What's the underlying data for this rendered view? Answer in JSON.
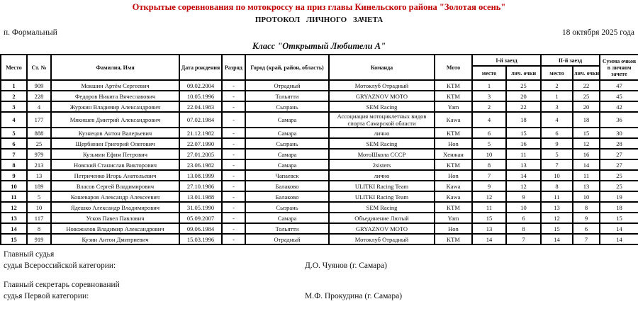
{
  "header": {
    "title": "Открытые соревнования по мотокроссу на приз главы Кинельского района \"Золотая осень\"",
    "subtitle": "ПРОТОКОЛ ЛИЧНОГО ЗАЧЕТА",
    "location": "п. Формальный",
    "date": "18 октября 2025 года",
    "class_title": "Класс \"Открытый Любители А\""
  },
  "colors": {
    "title_red": "#c00000",
    "border": "#000000",
    "text": "#111111"
  },
  "table": {
    "columns": {
      "place": "Место",
      "number": "Ст. №",
      "name": "Фамилия, Имя",
      "birth": "Дата рождения",
      "rank": "Разряд",
      "city": "Город (край, район, область)",
      "team": "Команда",
      "moto": "Мото",
      "race1": "I-й заезд",
      "race2": "II-й заезд",
      "sub_place": "место",
      "sub_points": "лич. очки",
      "total": "Сумма очков в личном зачете"
    },
    "rows": [
      {
        "place": "1",
        "number": "909",
        "name": "Мокшин Артём Сергеевич",
        "birth": "09.02.2004",
        "rank": "-",
        "city": "Отрадный",
        "team": "Мотоклуб Отрадный",
        "moto": "KTM",
        "r1_place": "1",
        "r1_points": "25",
        "r2_place": "2",
        "r2_points": "22",
        "total": "47"
      },
      {
        "place": "2",
        "number": "228",
        "name": "Федоров Никита Вячеславович",
        "birth": "10.05.1996",
        "rank": "-",
        "city": "Тольятти",
        "team": "GRYAZNOV MOTO",
        "moto": "KTM",
        "r1_place": "3",
        "r1_points": "20",
        "r2_place": "1",
        "r2_points": "25",
        "total": "45"
      },
      {
        "place": "3",
        "number": "4",
        "name": "Журжин Владимир Александрович",
        "birth": "22.04.1983",
        "rank": "-",
        "city": "Сызрань",
        "team": "SEM Racing",
        "moto": "Yam",
        "r1_place": "2",
        "r1_points": "22",
        "r2_place": "3",
        "r2_points": "20",
        "total": "42"
      },
      {
        "place": "4",
        "number": "177",
        "name": "Мякишев Дмитрий Александрович",
        "birth": "07.02.1984",
        "rank": "-",
        "city": "Самара",
        "team": "Ассоциация мотоциклетных видов спорта Самарской области",
        "moto": "Kawa",
        "r1_place": "4",
        "r1_points": "18",
        "r2_place": "4",
        "r2_points": "18",
        "total": "36"
      },
      {
        "place": "5",
        "number": "888",
        "name": "Кузнецов Антон Валерьевич",
        "birth": "21.12.1982",
        "rank": "-",
        "city": "Самара",
        "team": "лично",
        "moto": "KTM",
        "r1_place": "6",
        "r1_points": "15",
        "r2_place": "6",
        "r2_points": "15",
        "total": "30"
      },
      {
        "place": "6",
        "number": "25",
        "name": "Щербинин Григорий Олегович",
        "birth": "22.07.1990",
        "rank": "-",
        "city": "Сызрань",
        "team": "SEM Racing",
        "moto": "Hon",
        "r1_place": "5",
        "r1_points": "16",
        "r2_place": "9",
        "r2_points": "12",
        "total": "28"
      },
      {
        "place": "7",
        "number": "979",
        "name": "Кузьмин Ефим Петрович",
        "birth": "27.01.2005",
        "rank": "-",
        "city": "Самара",
        "team": "МотоШкола СССР",
        "moto": "Хенжан",
        "r1_place": "10",
        "r1_points": "11",
        "r2_place": "5",
        "r2_points": "16",
        "total": "27"
      },
      {
        "place": "8",
        "number": "213",
        "name": "Новский Станислав Викторович",
        "birth": "23.06.1982",
        "rank": "-",
        "city": "Самара",
        "team": "2sisters",
        "moto": "KTM",
        "r1_place": "8",
        "r1_points": "13",
        "r2_place": "7",
        "r2_points": "14",
        "total": "27"
      },
      {
        "place": "9",
        "number": "13",
        "name": "Петриченко Игорь Анатольевич",
        "birth": "13.08.1999",
        "rank": "-",
        "city": "Чапаевск",
        "team": "лично",
        "moto": "Hon",
        "r1_place": "7",
        "r1_points": "14",
        "r2_place": "10",
        "r2_points": "11",
        "total": "25"
      },
      {
        "place": "10",
        "number": "189",
        "name": "Власов Сергей Владимирович",
        "birth": "27.10.1986",
        "rank": "-",
        "city": "Балаково",
        "team": "ULITKI Racing Team",
        "moto": "Kawa",
        "r1_place": "9",
        "r1_points": "12",
        "r2_place": "8",
        "r2_points": "13",
        "total": "25"
      },
      {
        "place": "11",
        "number": "5",
        "name": "Кошеваров Александр Алексеевич",
        "birth": "13.01.1988",
        "rank": "-",
        "city": "Балаково",
        "team": "ULITKI Racing Team",
        "moto": "Kawa",
        "r1_place": "12",
        "r1_points": "9",
        "r2_place": "11",
        "r2_points": "10",
        "total": "19"
      },
      {
        "place": "12",
        "number": "10",
        "name": "Ядешко Александр Владимирович",
        "birth": "31.05.1990",
        "rank": "-",
        "city": "Сызрань",
        "team": "SEM Racing",
        "moto": "KTM",
        "r1_place": "11",
        "r1_points": "10",
        "r2_place": "13",
        "r2_points": "8",
        "total": "18"
      },
      {
        "place": "13",
        "number": "117",
        "name": "Усков Павел Павлович",
        "birth": "05.09.2007",
        "rank": "-",
        "city": "Самара",
        "team": "Объединение Лютый",
        "moto": "Yam",
        "r1_place": "15",
        "r1_points": "6",
        "r2_place": "12",
        "r2_points": "9",
        "total": "15"
      },
      {
        "place": "14",
        "number": "8",
        "name": "Новожилов Владимир Александрович",
        "birth": "09.06.1984",
        "rank": "-",
        "city": "Тольятти",
        "team": "GRYAZNOV MOTO",
        "moto": "Hon",
        "r1_place": "13",
        "r1_points": "8",
        "r2_place": "15",
        "r2_points": "6",
        "total": "14"
      },
      {
        "place": "15",
        "number": "919",
        "name": "Кузин Антон Дмитриевич",
        "birth": "15.03.1996",
        "rank": "-",
        "city": "Отрадный",
        "team": "Мотоклуб Отрадный",
        "moto": "KTM",
        "r1_place": "14",
        "r1_points": "7",
        "r2_place": "14",
        "r2_points": "7",
        "total": "14"
      }
    ]
  },
  "officials": [
    {
      "role": "Главный судья",
      "category": "судья Всероссийской категории:",
      "name": "Д.О. Чуянов (г. Самара)"
    },
    {
      "role": "Главный секретарь соревнований",
      "category": "судья Первой категории:",
      "name": "М.Ф. Прокудина (г. Самара)"
    }
  ]
}
